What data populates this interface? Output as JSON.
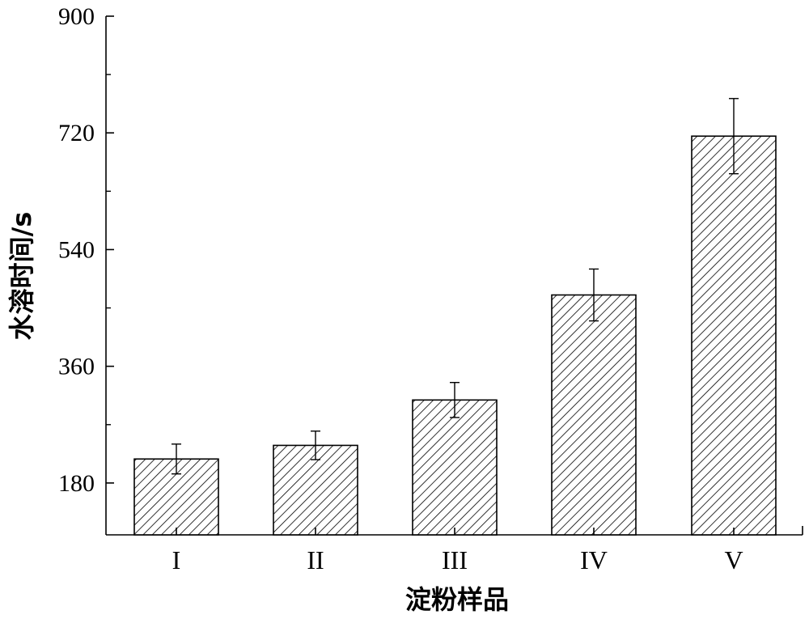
{
  "chart_data": {
    "type": "bar",
    "categories": [
      "I",
      "II",
      "III",
      "IV",
      "V"
    ],
    "values": [
      217,
      238,
      308,
      470,
      715
    ],
    "error_bars": [
      23,
      22,
      27,
      40,
      58
    ],
    "xlabel": "淀粉样品",
    "ylabel": "水溶时间/s",
    "ylim": [
      100,
      900
    ],
    "yticks": [
      180,
      360,
      540,
      720,
      900
    ],
    "ytick_labels": [
      "180",
      "360",
      "540",
      "720",
      "900"
    ],
    "grid": false,
    "bar_fill": "hatched",
    "bar_color": "#000000"
  }
}
